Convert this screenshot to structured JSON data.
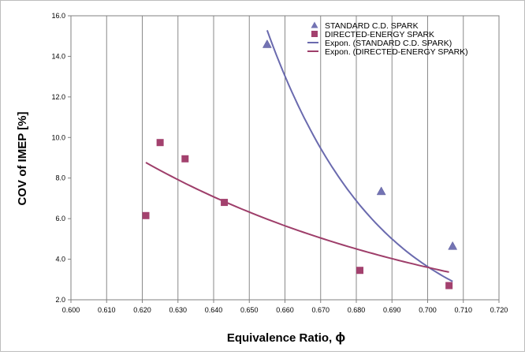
{
  "chart_data": {
    "type": "scatter",
    "title": "",
    "xlabel": "Equivalence Ratio, ",
    "xlabel_symbol": "ϕ",
    "ylabel": "COV of IMEP [%]",
    "xlim": [
      0.6,
      0.72
    ],
    "ylim": [
      2.0,
      16.0
    ],
    "x_ticks": [
      "0.600",
      "0.610",
      "0.620",
      "0.630",
      "0.640",
      "0.650",
      "0.660",
      "0.670",
      "0.680",
      "0.690",
      "0.700",
      "0.710",
      "0.720"
    ],
    "y_ticks": [
      "2.0",
      "4.0",
      "6.0",
      "8.0",
      "10.0",
      "12.0",
      "14.0",
      "16.0"
    ],
    "grid": "vertical",
    "legend_position": "top-right",
    "series": [
      {
        "name": "STANDARD C.D. SPARK",
        "marker": "triangle",
        "color": "#7373b3",
        "points": [
          {
            "x": 0.655,
            "y": 14.6
          },
          {
            "x": 0.687,
            "y": 7.35
          },
          {
            "x": 0.707,
            "y": 4.65
          }
        ]
      },
      {
        "name": "DIRECTED-ENERGY SPARK",
        "marker": "square",
        "color": "#a3416e",
        "points": [
          {
            "x": 0.621,
            "y": 6.15
          },
          {
            "x": 0.625,
            "y": 9.75
          },
          {
            "x": 0.632,
            "y": 8.95
          },
          {
            "x": 0.643,
            "y": 6.8
          },
          {
            "x": 0.681,
            "y": 3.45
          },
          {
            "x": 0.706,
            "y": 2.7
          }
        ]
      }
    ],
    "trendlines": [
      {
        "name": "Expon. (STANDARD C.D. SPARK)",
        "color": "#6a6aae",
        "x_range": [
          0.655,
          0.707
        ],
        "a": 18500000000.0,
        "b": -31.93
      },
      {
        "name": "Expon. (DIRECTED-ENERGY SPARK)",
        "color": "#9e3e6a",
        "x_range": [
          0.621,
          0.706
        ],
        "a": 9600,
        "b": -11.27
      }
    ]
  }
}
